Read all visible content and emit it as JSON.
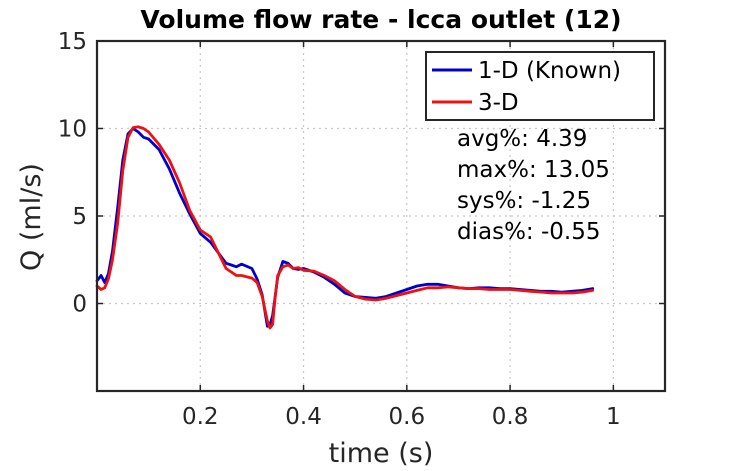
{
  "chart_data": {
    "type": "line",
    "title": "Volume flow rate - lcca outlet (12)",
    "xlabel": "time (s)",
    "ylabel": "Q (ml/s)",
    "xlim": [
      0,
      1.1
    ],
    "ylim": [
      -5,
      15
    ],
    "xticks": [
      0.2,
      0.4,
      0.6,
      0.8,
      1
    ],
    "xtick_labels": [
      "0.2",
      "0.4",
      "0.6",
      "0.8",
      "1"
    ],
    "yticks": [
      0,
      5,
      10,
      15
    ],
    "ytick_labels": [
      "0",
      "5",
      "10",
      "15"
    ],
    "grid": true,
    "legend_position": "top-right",
    "series": [
      {
        "name": "1-D (Known)",
        "color": "#0000cc",
        "x": [
          0.0,
          0.008,
          0.015,
          0.022,
          0.03,
          0.04,
          0.05,
          0.06,
          0.07,
          0.08,
          0.09,
          0.1,
          0.12,
          0.14,
          0.16,
          0.18,
          0.2,
          0.22,
          0.24,
          0.25,
          0.26,
          0.27,
          0.28,
          0.3,
          0.31,
          0.32,
          0.33,
          0.335,
          0.34,
          0.35,
          0.36,
          0.37,
          0.38,
          0.39,
          0.4,
          0.42,
          0.44,
          0.46,
          0.48,
          0.5,
          0.52,
          0.54,
          0.56,
          0.58,
          0.6,
          0.62,
          0.64,
          0.66,
          0.68,
          0.7,
          0.72,
          0.74,
          0.76,
          0.78,
          0.8,
          0.82,
          0.84,
          0.86,
          0.88,
          0.9,
          0.92,
          0.94,
          0.96
        ],
        "y": [
          1.3,
          1.6,
          1.2,
          1.7,
          3.0,
          5.5,
          8.2,
          9.7,
          10.0,
          9.8,
          9.5,
          9.4,
          8.8,
          7.7,
          6.3,
          5.1,
          4.0,
          3.5,
          2.7,
          2.3,
          2.2,
          2.1,
          2.25,
          2.0,
          1.4,
          0.5,
          -1.3,
          -1.2,
          -0.7,
          1.5,
          2.4,
          2.3,
          2.0,
          1.95,
          2.0,
          1.8,
          1.5,
          1.1,
          0.6,
          0.4,
          0.35,
          0.3,
          0.4,
          0.6,
          0.8,
          1.0,
          1.1,
          1.1,
          1.0,
          0.9,
          0.85,
          0.9,
          0.9,
          0.85,
          0.85,
          0.8,
          0.75,
          0.7,
          0.7,
          0.65,
          0.7,
          0.75,
          0.85
        ]
      },
      {
        "name": "3-D",
        "color": "#ee1111",
        "x": [
          0.0,
          0.008,
          0.015,
          0.022,
          0.03,
          0.04,
          0.05,
          0.06,
          0.07,
          0.08,
          0.09,
          0.1,
          0.12,
          0.14,
          0.16,
          0.18,
          0.2,
          0.22,
          0.24,
          0.25,
          0.26,
          0.27,
          0.28,
          0.3,
          0.31,
          0.32,
          0.33,
          0.335,
          0.34,
          0.345,
          0.35,
          0.36,
          0.37,
          0.38,
          0.39,
          0.4,
          0.42,
          0.44,
          0.46,
          0.48,
          0.5,
          0.52,
          0.54,
          0.56,
          0.58,
          0.6,
          0.62,
          0.64,
          0.66,
          0.68,
          0.7,
          0.72,
          0.74,
          0.76,
          0.78,
          0.8,
          0.82,
          0.84,
          0.86,
          0.88,
          0.9,
          0.92,
          0.94,
          0.96
        ],
        "y": [
          1.0,
          0.8,
          0.9,
          1.4,
          2.5,
          4.6,
          7.6,
          9.5,
          10.05,
          10.1,
          10.0,
          9.8,
          9.1,
          8.2,
          6.9,
          5.3,
          4.2,
          3.8,
          2.6,
          2.0,
          1.8,
          1.6,
          1.6,
          1.45,
          1.2,
          0.4,
          -1.0,
          -1.4,
          -1.2,
          0.3,
          1.6,
          2.1,
          2.2,
          2.0,
          2.05,
          1.9,
          1.85,
          1.6,
          1.3,
          0.8,
          0.4,
          0.25,
          0.2,
          0.3,
          0.45,
          0.6,
          0.75,
          0.9,
          0.9,
          0.95,
          0.9,
          0.85,
          0.85,
          0.8,
          0.8,
          0.8,
          0.75,
          0.7,
          0.65,
          0.6,
          0.6,
          0.6,
          0.65,
          0.75
        ]
      }
    ],
    "annotations": [
      "avg%: 4.39",
      "max%: 13.05",
      "sys%: -1.25",
      "dias%: -0.55"
    ]
  }
}
